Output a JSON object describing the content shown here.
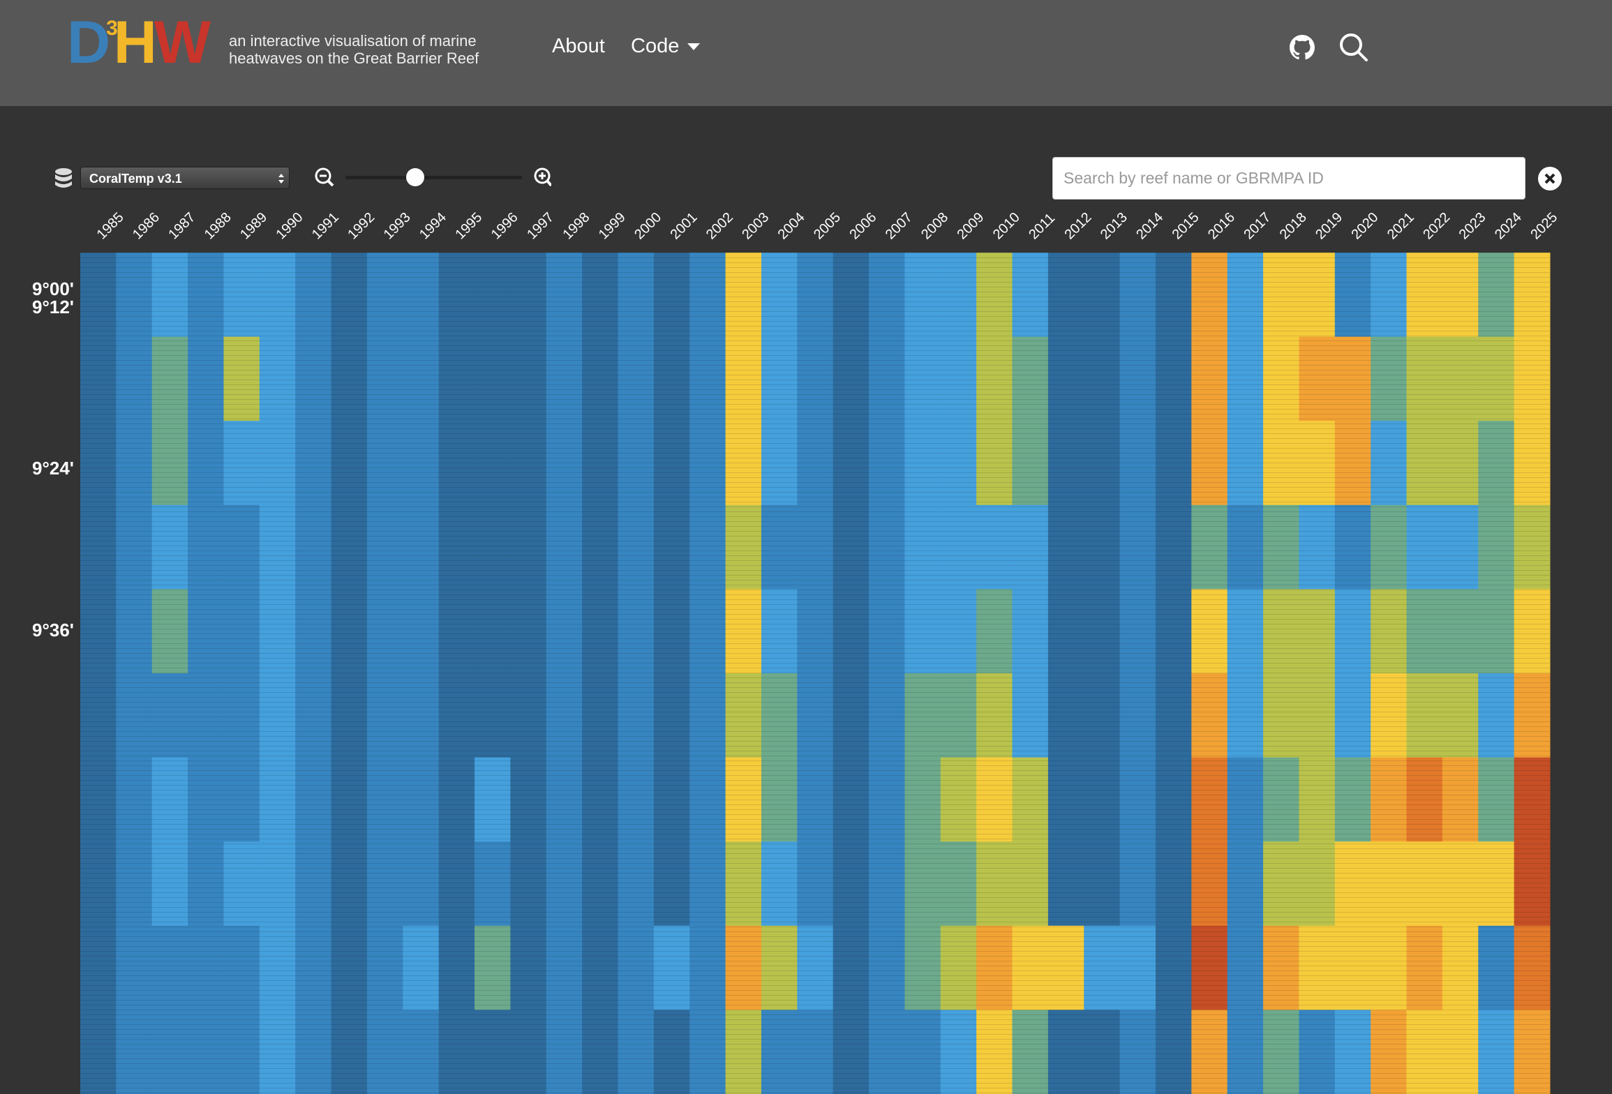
{
  "header": {
    "logo": {
      "d": "D",
      "sup": "3",
      "h": "H",
      "w": "W"
    },
    "tagline": [
      "an interactive visualisation of marine",
      "heatwaves on the Great Barrier Reef"
    ],
    "nav": [
      "About",
      "Code"
    ]
  },
  "controls": {
    "dataset": "CoralTemp v3.1",
    "search_placeholder": "Search by reef name or GBRMPA ID"
  },
  "heatmap": {
    "years": [
      1985,
      1986,
      1987,
      1988,
      1989,
      1990,
      1991,
      1992,
      1993,
      1994,
      1995,
      1996,
      1997,
      1998,
      1999,
      2000,
      2001,
      2002,
      2003,
      2004,
      2005,
      2006,
      2007,
      2008,
      2009,
      2010,
      2011,
      2012,
      2013,
      2014,
      2015,
      2016,
      2017,
      2018,
      2019,
      2020,
      2021,
      2022,
      2023,
      2024,
      2025
    ],
    "latitude_labels": [
      "9°00'",
      "9°12'",
      "9°24'",
      "9°36'"
    ],
    "columns": [
      [
        "#2e6b9c",
        "#2e6b9c",
        "#2e6b9c",
        "#2e6b9c",
        "#2e6b9c",
        "#2e6b9c",
        "#2e6b9c",
        "#2e6b9c",
        "#2e6b9c",
        "#2e6b9c"
      ],
      [
        "#3785c0",
        "#3785c0",
        "#3785c0",
        "#3785c0",
        "#3785c0",
        "#3785c0",
        "#3785c0",
        "#3785c0",
        "#3785c0",
        "#3785c0"
      ],
      [
        "#45a0dc",
        "#6daa8c",
        "#6daa8c",
        "#45a0dc",
        "#6daa8c",
        "#3785c0",
        "#45a0dc",
        "#45a0dc",
        "#3785c0",
        "#3785c0"
      ],
      [
        "#3785c0",
        "#3785c0",
        "#3785c0",
        "#3785c0",
        "#3785c0",
        "#3785c0",
        "#3785c0",
        "#3785c0",
        "#3785c0",
        "#3785c0"
      ],
      [
        "#45a0dc",
        "#b9c24c",
        "#45a0dc",
        "#3785c0",
        "#3785c0",
        "#3785c0",
        "#3785c0",
        "#45a0dc",
        "#3785c0",
        "#3785c0"
      ],
      [
        "#45a0dc",
        "#45a0dc",
        "#45a0dc",
        "#45a0dc",
        "#45a0dc",
        "#45a0dc",
        "#45a0dc",
        "#45a0dc",
        "#45a0dc",
        "#45a0dc"
      ],
      [
        "#3785c0",
        "#3785c0",
        "#3785c0",
        "#3785c0",
        "#3785c0",
        "#3785c0",
        "#3785c0",
        "#3785c0",
        "#3785c0",
        "#3785c0"
      ],
      [
        "#2e6b9c",
        "#2e6b9c",
        "#2e6b9c",
        "#2e6b9c",
        "#2e6b9c",
        "#2e6b9c",
        "#2e6b9c",
        "#2e6b9c",
        "#2e6b9c",
        "#2e6b9c"
      ],
      [
        "#3785c0",
        "#3785c0",
        "#3785c0",
        "#3785c0",
        "#3785c0",
        "#3785c0",
        "#3785c0",
        "#3785c0",
        "#3785c0",
        "#3785c0"
      ],
      [
        "#3785c0",
        "#3785c0",
        "#3785c0",
        "#3785c0",
        "#3785c0",
        "#3785c0",
        "#3785c0",
        "#3785c0",
        "#45a0dc",
        "#3785c0"
      ],
      [
        "#2e6b9c",
        "#2e6b9c",
        "#2e6b9c",
        "#2e6b9c",
        "#2e6b9c",
        "#2e6b9c",
        "#2e6b9c",
        "#2e6b9c",
        "#2e6b9c",
        "#2e6b9c"
      ],
      [
        "#2e6b9c",
        "#2e6b9c",
        "#2e6b9c",
        "#2e6b9c",
        "#2e6b9c",
        "#2e6b9c",
        "#45a0dc",
        "#3785c0",
        "#6daa8c",
        "#2e6b9c"
      ],
      [
        "#2e6b9c",
        "#2e6b9c",
        "#2e6b9c",
        "#2e6b9c",
        "#2e6b9c",
        "#2e6b9c",
        "#2e6b9c",
        "#2e6b9c",
        "#2e6b9c",
        "#2e6b9c"
      ],
      [
        "#3785c0",
        "#3785c0",
        "#3785c0",
        "#3785c0",
        "#3785c0",
        "#3785c0",
        "#3785c0",
        "#3785c0",
        "#3785c0",
        "#3785c0"
      ],
      [
        "#2e6b9c",
        "#2e6b9c",
        "#2e6b9c",
        "#2e6b9c",
        "#2e6b9c",
        "#2e6b9c",
        "#2e6b9c",
        "#2e6b9c",
        "#2e6b9c",
        "#2e6b9c"
      ],
      [
        "#3785c0",
        "#3785c0",
        "#3785c0",
        "#3785c0",
        "#3785c0",
        "#3785c0",
        "#3785c0",
        "#3785c0",
        "#3785c0",
        "#3785c0"
      ],
      [
        "#2e6b9c",
        "#2e6b9c",
        "#2e6b9c",
        "#2e6b9c",
        "#2e6b9c",
        "#2e6b9c",
        "#2e6b9c",
        "#2e6b9c",
        "#45a0dc",
        "#2e6b9c"
      ],
      [
        "#3785c0",
        "#3785c0",
        "#3785c0",
        "#3785c0",
        "#3785c0",
        "#3785c0",
        "#3785c0",
        "#3785c0",
        "#3785c0",
        "#3785c0"
      ],
      [
        "#f6cc3c",
        "#f6cc3c",
        "#f6cc3c",
        "#b9c24c",
        "#f6cc3c",
        "#b9c24c",
        "#f6cc3c",
        "#b9c24c",
        "#f2a234",
        "#b9c24c"
      ],
      [
        "#45a0dc",
        "#45a0dc",
        "#45a0dc",
        "#3785c0",
        "#45a0dc",
        "#6daa8c",
        "#6daa8c",
        "#45a0dc",
        "#b9c24c",
        "#3785c0"
      ],
      [
        "#3785c0",
        "#3785c0",
        "#3785c0",
        "#3785c0",
        "#3785c0",
        "#3785c0",
        "#3785c0",
        "#3785c0",
        "#45a0dc",
        "#3785c0"
      ],
      [
        "#2e6b9c",
        "#2e6b9c",
        "#2e6b9c",
        "#2e6b9c",
        "#2e6b9c",
        "#2e6b9c",
        "#2e6b9c",
        "#2e6b9c",
        "#2e6b9c",
        "#2e6b9c"
      ],
      [
        "#3785c0",
        "#3785c0",
        "#3785c0",
        "#3785c0",
        "#3785c0",
        "#3785c0",
        "#3785c0",
        "#3785c0",
        "#3785c0",
        "#3785c0"
      ],
      [
        "#45a0dc",
        "#45a0dc",
        "#45a0dc",
        "#45a0dc",
        "#45a0dc",
        "#6daa8c",
        "#6daa8c",
        "#6daa8c",
        "#6daa8c",
        "#3785c0"
      ],
      [
        "#45a0dc",
        "#45a0dc",
        "#45a0dc",
        "#45a0dc",
        "#45a0dc",
        "#6daa8c",
        "#b9c24c",
        "#6daa8c",
        "#b9c24c",
        "#45a0dc"
      ],
      [
        "#b9c24c",
        "#b9c24c",
        "#b9c24c",
        "#45a0dc",
        "#6daa8c",
        "#b9c24c",
        "#f6cc3c",
        "#b9c24c",
        "#f2a234",
        "#f6cc3c"
      ],
      [
        "#45a0dc",
        "#6daa8c",
        "#6daa8c",
        "#45a0dc",
        "#45a0dc",
        "#45a0dc",
        "#b9c24c",
        "#b9c24c",
        "#f6cc3c",
        "#6daa8c"
      ],
      [
        "#2e6b9c",
        "#2e6b9c",
        "#2e6b9c",
        "#2e6b9c",
        "#2e6b9c",
        "#2e6b9c",
        "#2e6b9c",
        "#2e6b9c",
        "#f6cc3c",
        "#2e6b9c"
      ],
      [
        "#2e6b9c",
        "#2e6b9c",
        "#2e6b9c",
        "#2e6b9c",
        "#2e6b9c",
        "#2e6b9c",
        "#2e6b9c",
        "#2e6b9c",
        "#45a0dc",
        "#2e6b9c"
      ],
      [
        "#3785c0",
        "#3785c0",
        "#3785c0",
        "#3785c0",
        "#3785c0",
        "#3785c0",
        "#3785c0",
        "#3785c0",
        "#45a0dc",
        "#3785c0"
      ],
      [
        "#2e6b9c",
        "#2e6b9c",
        "#2e6b9c",
        "#2e6b9c",
        "#2e6b9c",
        "#2e6b9c",
        "#2e6b9c",
        "#2e6b9c",
        "#2e6b9c",
        "#2e6b9c"
      ],
      [
        "#f2a234",
        "#f2a234",
        "#f2a234",
        "#6daa8c",
        "#f6cc3c",
        "#f2a234",
        "#e2782a",
        "#e2782a",
        "#c64f26",
        "#f2a234"
      ],
      [
        "#45a0dc",
        "#45a0dc",
        "#45a0dc",
        "#3785c0",
        "#45a0dc",
        "#45a0dc",
        "#3785c0",
        "#3785c0",
        "#3785c0",
        "#3785c0"
      ],
      [
        "#f6cc3c",
        "#f6cc3c",
        "#f6cc3c",
        "#6daa8c",
        "#b9c24c",
        "#b9c24c",
        "#6daa8c",
        "#b9c24c",
        "#f2a234",
        "#6daa8c"
      ],
      [
        "#f6cc3c",
        "#f2a234",
        "#f6cc3c",
        "#45a0dc",
        "#b9c24c",
        "#b9c24c",
        "#b9c24c",
        "#b9c24c",
        "#f6cc3c",
        "#3785c0"
      ],
      [
        "#3785c0",
        "#f2a234",
        "#f2a234",
        "#3785c0",
        "#45a0dc",
        "#45a0dc",
        "#6daa8c",
        "#f6cc3c",
        "#f6cc3c",
        "#45a0dc"
      ],
      [
        "#45a0dc",
        "#6daa8c",
        "#45a0dc",
        "#6daa8c",
        "#b9c24c",
        "#f6cc3c",
        "#f2a234",
        "#f6cc3c",
        "#f6cc3c",
        "#f2a234"
      ],
      [
        "#f6cc3c",
        "#b9c24c",
        "#b9c24c",
        "#45a0dc",
        "#6daa8c",
        "#b9c24c",
        "#e2782a",
        "#f6cc3c",
        "#f2a234",
        "#f6cc3c"
      ],
      [
        "#f6cc3c",
        "#b9c24c",
        "#b9c24c",
        "#45a0dc",
        "#6daa8c",
        "#b9c24c",
        "#f2a234",
        "#f6cc3c",
        "#f6cc3c",
        "#f6cc3c"
      ],
      [
        "#6daa8c",
        "#b9c24c",
        "#6daa8c",
        "#6daa8c",
        "#6daa8c",
        "#45a0dc",
        "#6daa8c",
        "#f6cc3c",
        "#3785c0",
        "#45a0dc"
      ],
      [
        "#f6cc3c",
        "#f6cc3c",
        "#f6cc3c",
        "#b9c24c",
        "#f6cc3c",
        "#f2a234",
        "#c64f26",
        "#c64f26",
        "#e2782a",
        "#f2a234"
      ]
    ]
  }
}
